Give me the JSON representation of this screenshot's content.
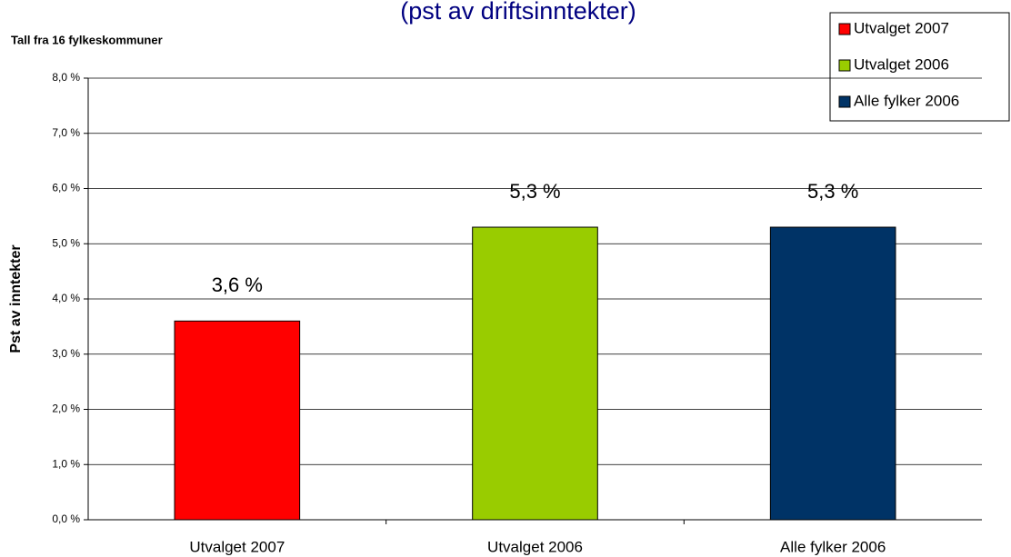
{
  "chart_data": {
    "type": "bar",
    "title": "(pst av driftsinntekter)",
    "subtitle": "Tall fra 16 fylkeskommuner",
    "y_label": "Pst av inntekter",
    "categories": [
      "Utvalget 2007",
      "Utvalget 2006",
      "Alle fylker 2006"
    ],
    "values": [
      3.6,
      5.3,
      5.3
    ],
    "value_labels": [
      "3,6 %",
      "5,3 %",
      "5,3 %"
    ],
    "colors": [
      "#ff0000",
      "#99cc00",
      "#003366"
    ],
    "ylim": [
      0,
      8
    ],
    "yticks": [
      {
        "value": 0,
        "label": "0,0 %"
      },
      {
        "value": 1,
        "label": "1,0 %"
      },
      {
        "value": 2,
        "label": "2,0 %"
      },
      {
        "value": 3,
        "label": "3,0 %"
      },
      {
        "value": 4,
        "label": "4,0 %"
      },
      {
        "value": 5,
        "label": "5,0 %"
      },
      {
        "value": 6,
        "label": "6,0 %"
      },
      {
        "value": 7,
        "label": "7,0 %"
      },
      {
        "value": 8,
        "label": "8,0 %"
      }
    ],
    "grid": true,
    "legend": "top-right"
  }
}
